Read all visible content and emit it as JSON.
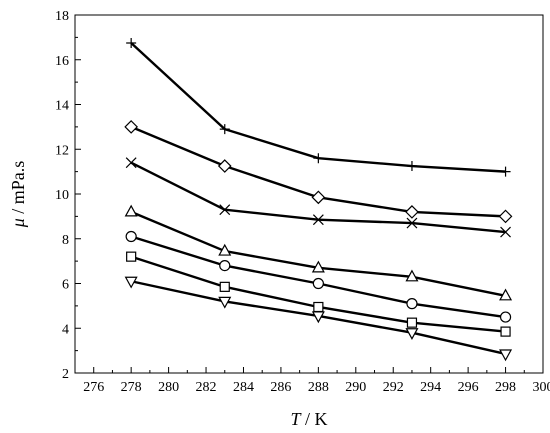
{
  "chart_data": {
    "type": "line",
    "title": "",
    "xlabel": {
      "var": "T",
      "rest": " / K"
    },
    "ylabel": {
      "var": "μ",
      "rest": " / mPa.s"
    },
    "xlim": [
      275,
      300
    ],
    "ylim": [
      2,
      18
    ],
    "xticks": [
      276,
      278,
      280,
      282,
      284,
      286,
      288,
      290,
      292,
      294,
      296,
      298,
      300
    ],
    "yticks": [
      2,
      4,
      6,
      8,
      10,
      12,
      14,
      16,
      18
    ],
    "x": [
      278,
      283,
      288,
      293,
      298
    ],
    "grid": false,
    "legend": "none",
    "series": [
      {
        "marker": "plus",
        "values": [
          16.75,
          12.9,
          11.6,
          11.25,
          11.0
        ]
      },
      {
        "marker": "diamond",
        "values": [
          13.0,
          11.25,
          9.85,
          9.2,
          9.0
        ]
      },
      {
        "marker": "cross",
        "values": [
          11.4,
          9.3,
          8.85,
          8.7,
          8.3
        ]
      },
      {
        "marker": "triangle-up",
        "values": [
          9.2,
          7.45,
          6.7,
          6.3,
          5.45
        ]
      },
      {
        "marker": "circle",
        "values": [
          8.1,
          6.8,
          6.0,
          5.1,
          4.5
        ]
      },
      {
        "marker": "square",
        "values": [
          7.2,
          5.85,
          4.95,
          4.25,
          3.85
        ]
      },
      {
        "marker": "triangle-down",
        "values": [
          6.1,
          5.2,
          4.55,
          3.8,
          2.85
        ]
      }
    ]
  }
}
